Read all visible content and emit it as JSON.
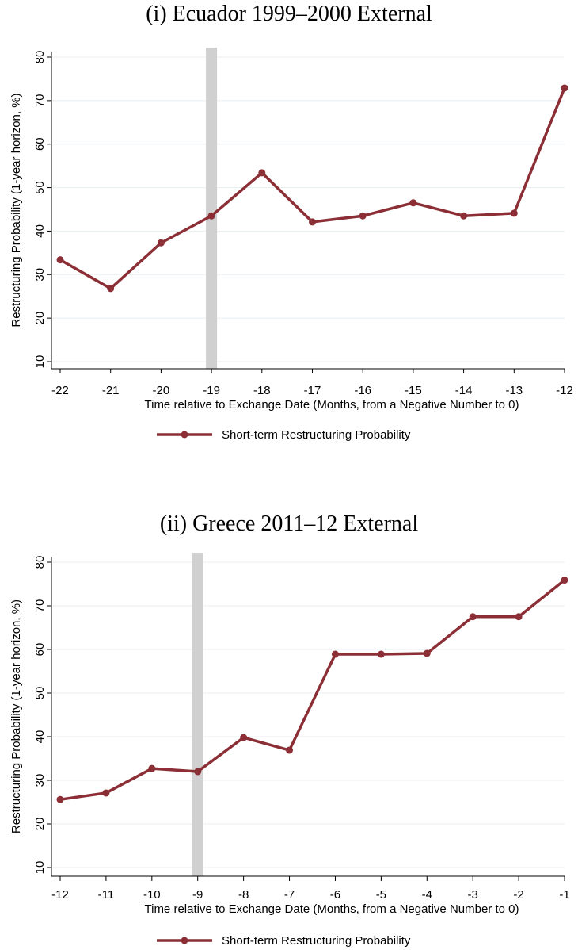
{
  "chart_data": [
    {
      "type": "line",
      "title": "(i) Ecuador 1999–2000 External",
      "xlabel": "Time relative to Exchange Date (Months, from a Negative Number to 0)",
      "ylabel": "Restructuring Probability (1-year horizon, %)",
      "x": [
        -22,
        -21,
        -20,
        -19,
        -18,
        -17,
        -16,
        -15,
        -14,
        -13,
        -12
      ],
      "xticks": [
        "-22",
        "-21",
        "-20",
        "-19",
        "-18",
        "-17",
        "-16",
        "-15",
        "-14",
        "-13",
        "-12"
      ],
      "yticks": [
        "10",
        "20",
        "30",
        "40",
        "50",
        "60",
        "70",
        "80"
      ],
      "ylim": [
        10,
        80
      ],
      "xlim": [
        -22,
        -12
      ],
      "grid": true,
      "shaded_x": -19,
      "legend_position": "bottom",
      "series": [
        {
          "name": "Short-term Restructuring Probability",
          "color": "#8b2e35",
          "values": [
            33.4,
            26.8,
            37.3,
            43.5,
            53.4,
            42.1,
            43.5,
            46.5,
            43.5,
            44.1,
            72.9
          ]
        }
      ]
    },
    {
      "type": "line",
      "title": "(ii) Greece 2011–12 External",
      "xlabel": "Time relative to Exchange Date (Months, from a Negative Number to 0)",
      "ylabel": "Restructuring Probability (1-year horizon, %)",
      "x": [
        -12,
        -11,
        -10,
        -9,
        -8,
        -7,
        -6,
        -5,
        -4,
        -3,
        -2,
        -1
      ],
      "xticks": [
        "-12",
        "-11",
        "-10",
        "-9",
        "-8",
        "-7",
        "-6",
        "-5",
        "-4",
        "-3",
        "-2",
        "-1"
      ],
      "yticks": [
        "10",
        "20",
        "30",
        "40",
        "50",
        "60",
        "70",
        "80"
      ],
      "ylim": [
        10,
        80
      ],
      "xlim": [
        -12,
        -1
      ],
      "grid": true,
      "shaded_x": -9,
      "legend_position": "bottom",
      "series": [
        {
          "name": "Short-term Restructuring Probability",
          "color": "#8b2e35",
          "values": [
            25.6,
            27.1,
            32.7,
            32.0,
            39.8,
            36.9,
            58.9,
            58.9,
            59.1,
            67.5,
            67.5,
            75.9
          ]
        }
      ]
    }
  ]
}
